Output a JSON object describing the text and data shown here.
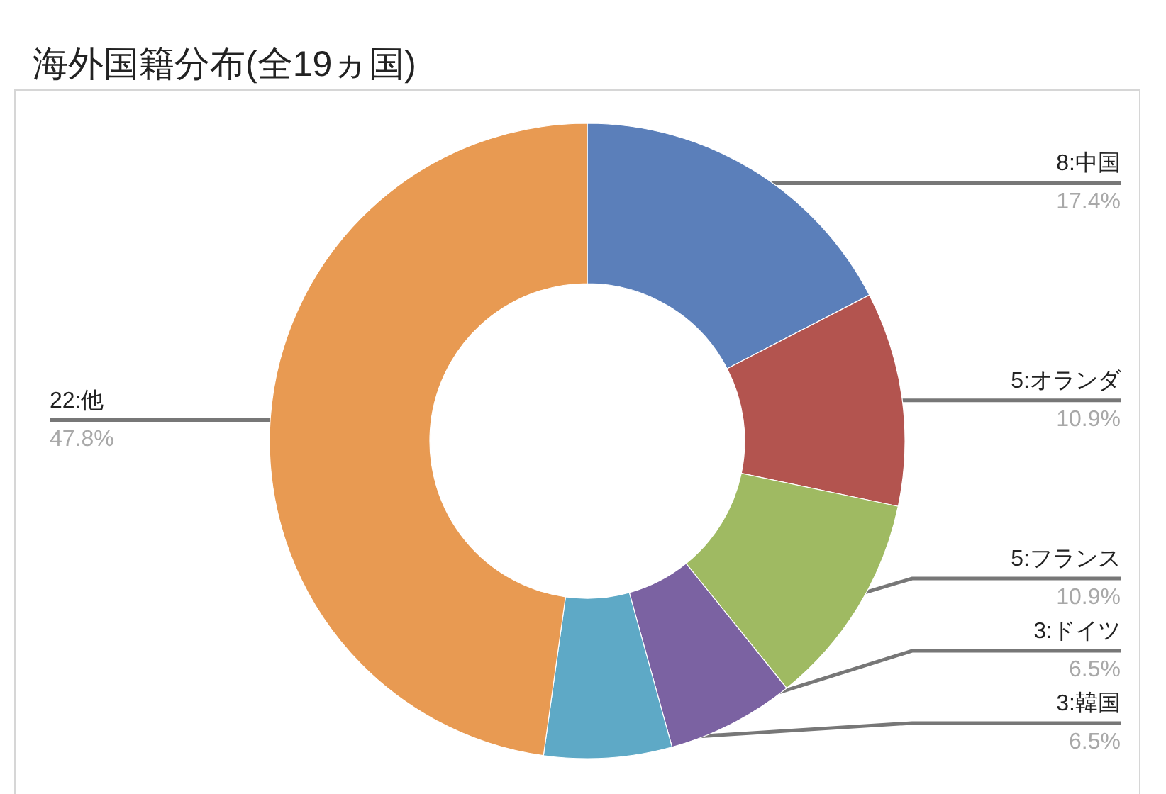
{
  "chart_data": {
    "type": "donut",
    "title": "海外国籍分布(全19ヵ国)",
    "categories": [
      "8:中国",
      "5:オランダ",
      "5:フランス",
      "3:ドイツ",
      "3:韓国",
      "22:他"
    ],
    "values": [
      17.4,
      10.9,
      10.9,
      6.5,
      6.5,
      47.8
    ],
    "colors": [
      "#5b7fba",
      "#b3544f",
      "#9fba62",
      "#7b62a2",
      "#5ea9c6",
      "#e89a52"
    ],
    "value_labels": [
      "17.4%",
      "10.9%",
      "10.9%",
      "6.5%",
      "6.5%",
      "47.8%"
    ]
  }
}
